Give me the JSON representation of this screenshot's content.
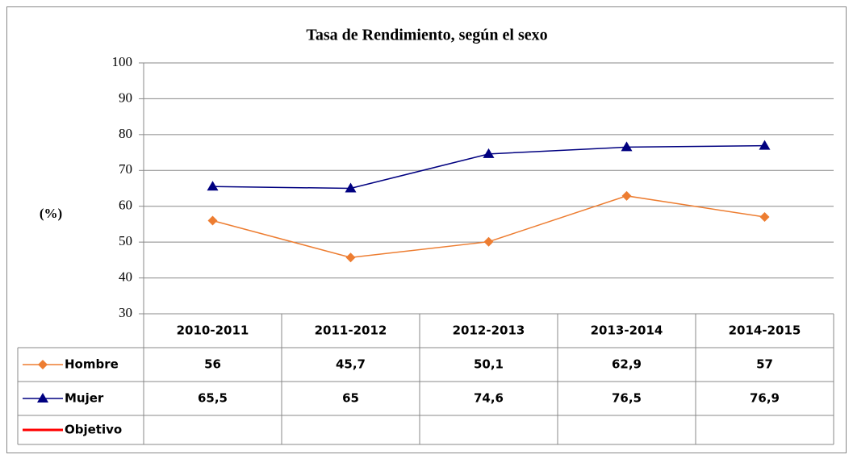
{
  "chart_data": {
    "type": "line",
    "title": "Tasa de Rendimiento, según el sexo",
    "y_label": "(%)",
    "categories": [
      "2010-2011",
      "2011-2012",
      "2012-2013",
      "2013-2014",
      "2014-2015"
    ],
    "series": [
      {
        "name": "Hombre",
        "color": "#ED7D31",
        "marker": "diamond",
        "values": [
          56,
          45.7,
          50.1,
          62.9,
          57
        ],
        "value_labels": [
          "56",
          "45,7",
          "50,1",
          "62,9",
          "57"
        ]
      },
      {
        "name": "Mujer",
        "color": "#000080",
        "marker": "triangle",
        "values": [
          65.5,
          65,
          74.6,
          76.5,
          76.9
        ],
        "value_labels": [
          "65,5",
          "65",
          "74,6",
          "76,5",
          "76,9"
        ]
      },
      {
        "name": "Objetivo",
        "color": "#FF0000",
        "values": [
          null,
          null,
          null,
          null,
          null
        ]
      }
    ],
    "ylim": [
      30,
      100
    ],
    "yticks": [
      30,
      40,
      50,
      60,
      70,
      80,
      90,
      100
    ],
    "grid": true,
    "data_table": true
  }
}
